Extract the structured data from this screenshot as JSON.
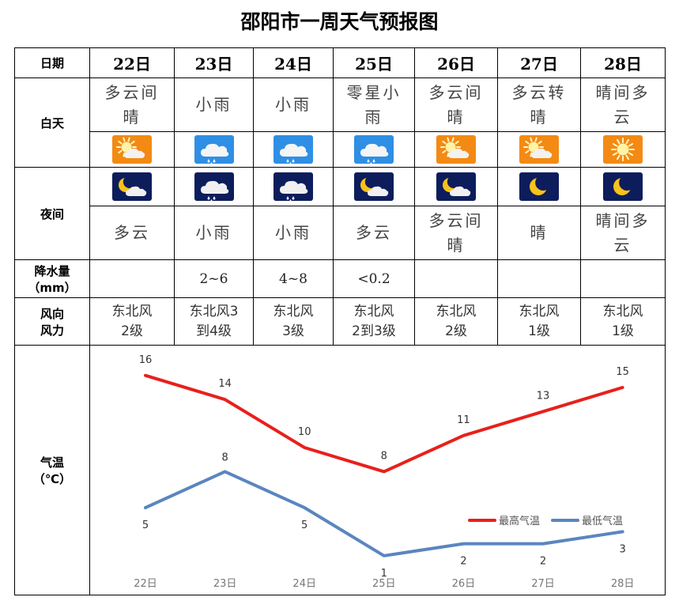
{
  "title": "邵阳市一周天气预报图",
  "labels": {
    "date": "日期",
    "day": "白天",
    "night": "夜间",
    "precip_l1": "降水量",
    "precip_l2": "（mm）",
    "wind_l1": "风向",
    "wind_l2": "风力",
    "temp_l1": "气温",
    "temp_l2": "（℃）"
  },
  "days": [
    {
      "date": "22日",
      "day_weather_1": "多云间",
      "day_weather_2": "晴",
      "day_icon": "partly-sunny-icon",
      "night_icon": "moon-cloud-icon",
      "night_weather_1": "多云",
      "night_weather_2": "",
      "precip": "",
      "wind_1": "东北风",
      "wind_2": "2级"
    },
    {
      "date": "23日",
      "day_weather_1": "小雨",
      "day_weather_2": "",
      "day_icon": "light-rain-icon",
      "night_icon": "night-rain-icon",
      "night_weather_1": "小雨",
      "night_weather_2": "",
      "precip": "2~6",
      "wind_1": "东北风3",
      "wind_2": "到4级"
    },
    {
      "date": "24日",
      "day_weather_1": "小雨",
      "day_weather_2": "",
      "day_icon": "light-rain-icon",
      "night_icon": "night-rain-icon",
      "night_weather_1": "小雨",
      "night_weather_2": "",
      "precip": "4~8",
      "wind_1": "东北风",
      "wind_2": "3级"
    },
    {
      "date": "25日",
      "day_weather_1": "零星小",
      "day_weather_2": "雨",
      "day_icon": "light-rain-icon",
      "night_icon": "moon-cloud-icon",
      "night_weather_1": "多云",
      "night_weather_2": "",
      "precip": "<0.2",
      "wind_1": "东北风",
      "wind_2": "2到3级"
    },
    {
      "date": "26日",
      "day_weather_1": "多云间",
      "day_weather_2": "晴",
      "day_icon": "partly-sunny-icon",
      "night_icon": "moon-cloud-icon",
      "night_weather_1": "多云间",
      "night_weather_2": "晴",
      "precip": "",
      "wind_1": "东北风",
      "wind_2": "2级"
    },
    {
      "date": "27日",
      "day_weather_1": "多云转",
      "day_weather_2": "晴",
      "day_icon": "partly-sunny-icon",
      "night_icon": "moon-icon",
      "night_weather_1": "晴",
      "night_weather_2": "",
      "precip": "",
      "wind_1": "东北风",
      "wind_2": "1级"
    },
    {
      "date": "28日",
      "day_weather_1": "晴间多",
      "day_weather_2": "云",
      "day_icon": "sun-icon",
      "night_icon": "moon-icon",
      "night_weather_1": "晴间多",
      "night_weather_2": "云",
      "precip": "",
      "wind_1": "东北风",
      "wind_2": "1级"
    }
  ],
  "colors": {
    "high": "#e8201c",
    "low": "#5a86bf",
    "day_icon_bg": "#f38a14",
    "rain_icon_bg": "#2f8fe4",
    "night_icon_bg": "#0d1d5c"
  },
  "chart_data": {
    "type": "line",
    "categories": [
      "22日",
      "23日",
      "24日",
      "25日",
      "26日",
      "27日",
      "28日"
    ],
    "series": [
      {
        "name": "最高气温",
        "values": [
          16,
          14,
          10,
          8,
          11,
          13,
          15
        ]
      },
      {
        "name": "最低气温",
        "values": [
          5,
          8,
          5,
          1,
          2,
          2,
          3
        ]
      }
    ],
    "legend_position": "right",
    "grid": false
  }
}
